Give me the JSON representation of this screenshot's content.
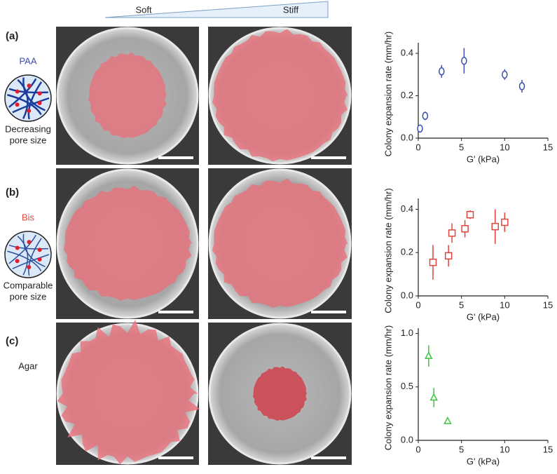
{
  "figure": {
    "gradient": {
      "left": "Soft",
      "right": "Stiff"
    },
    "panels": [
      {
        "label": "(a)",
        "material": "PAA",
        "material_color": "#3a4fb0",
        "note": [
          "Decreasing",
          "pore size"
        ]
      },
      {
        "label": "(b)",
        "material": "Bis",
        "material_color": "#e0453c",
        "note": [
          "Comparable",
          "pore size"
        ]
      },
      {
        "label": "(c)",
        "material": "Agar",
        "material_color": "#222222",
        "note": []
      }
    ]
  },
  "chart_data": [
    {
      "type": "scatter",
      "marker": "circle",
      "color": "#3a4fb0",
      "xlabel": "G' (kPa)",
      "ylabel": "Colony expansion rate (mm/hr)",
      "x": [
        0.2,
        0.8,
        2.7,
        5.3,
        10,
        12
      ],
      "values": [
        0.045,
        0.105,
        0.315,
        0.365,
        0.3,
        0.245
      ],
      "errors": [
        0.015,
        0.02,
        0.03,
        0.06,
        0.025,
        0.03
      ],
      "xlim": [
        0,
        15
      ],
      "xticks": [
        0,
        5,
        10,
        15
      ],
      "ylim": [
        0,
        0.45
      ],
      "yticks": [
        {
          "value": 0,
          "label": "0.0"
        },
        0.2,
        0.4
      ]
    },
    {
      "type": "scatter",
      "marker": "square",
      "color": "#e0453c",
      "xlabel": "G' (kPa)",
      "ylabel": "Colony expansion rate (mm/hr)",
      "x": [
        1.7,
        3.5,
        3.9,
        5.4,
        6,
        8.9,
        10
      ],
      "values": [
        0.155,
        0.185,
        0.29,
        0.31,
        0.375,
        0.32,
        0.34
      ],
      "errors": [
        0.08,
        0.05,
        0.045,
        0.04,
        0.02,
        0.08,
        0.045
      ],
      "xlim": [
        0,
        15
      ],
      "xticks": [
        0,
        5,
        10,
        15
      ],
      "ylim": [
        0,
        0.45
      ],
      "yticks": [
        {
          "value": 0,
          "label": "0.0"
        },
        0.2,
        0.4
      ]
    },
    {
      "type": "scatter",
      "marker": "triangle",
      "color": "#3cc43c",
      "xlabel": "G' (kPa)",
      "ylabel": "Colony expansion rate (mm/hr)",
      "x": [
        1.2,
        1.8,
        3.4
      ],
      "values": [
        0.79,
        0.4,
        0.18
      ],
      "errors": [
        0.1,
        0.09,
        0.02
      ],
      "xlim": [
        0,
        15
      ],
      "xticks": [
        0,
        5,
        10,
        15
      ],
      "ylim": [
        0,
        1.05
      ],
      "yticks": [
        {
          "value": 0,
          "label": "0.0"
        },
        {
          "value": 0.5,
          "label": "0.5"
        },
        {
          "value": 1,
          "label": "1.0"
        }
      ]
    }
  ]
}
